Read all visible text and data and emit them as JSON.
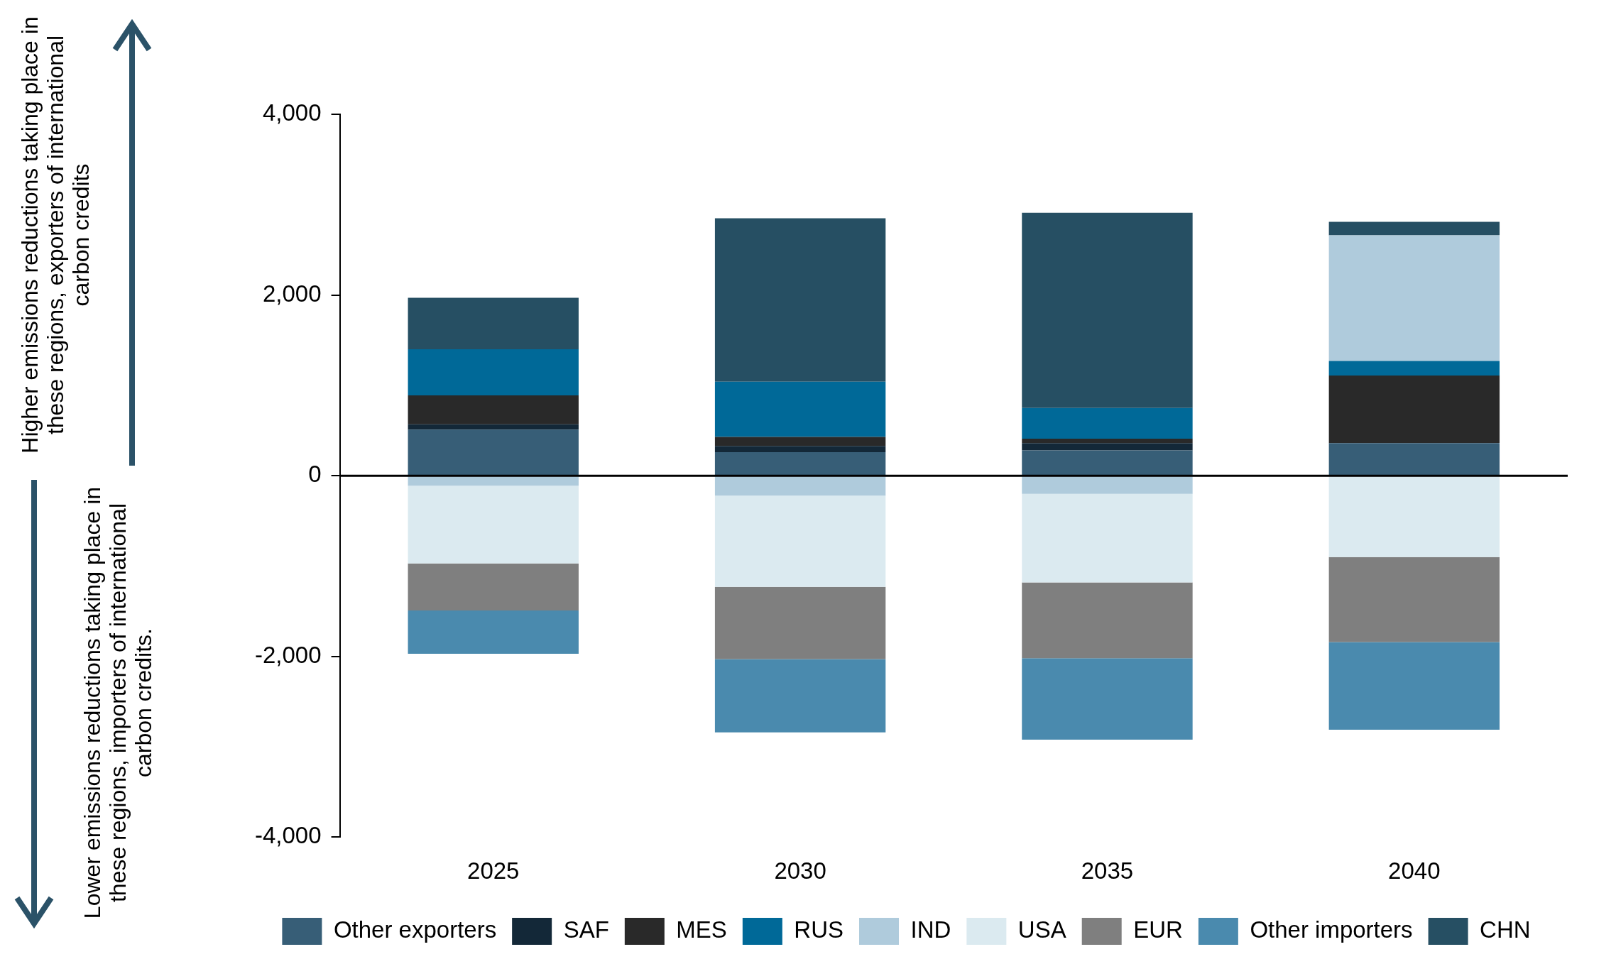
{
  "chart_data": {
    "type": "bar",
    "stacked": true,
    "categories": [
      "2025",
      "2030",
      "2035",
      "2040"
    ],
    "series": [
      {
        "name": "Other exporters",
        "color": "#375e77",
        "values": [
          510,
          260,
          280,
          360
        ]
      },
      {
        "name": "SAF",
        "color": "#132838",
        "values": [
          60,
          70,
          80,
          null
        ]
      },
      {
        "name": "MES",
        "color": "#292929",
        "values": [
          320,
          100,
          50,
          750
        ]
      },
      {
        "name": "RUS",
        "color": "#006998",
        "values": [
          510,
          610,
          340,
          160
        ]
      },
      {
        "name": "IND",
        "color": "#afcbdc",
        "values": [
          -110,
          -220,
          -200,
          1390
        ]
      },
      {
        "name": "USA",
        "color": "#dbeaf0",
        "values": [
          -860,
          -1010,
          -980,
          -900
        ]
      },
      {
        "name": "EUR",
        "color": "#7f7f7f",
        "values": [
          -520,
          -800,
          -840,
          -940
        ]
      },
      {
        "name": "Other importers",
        "color": "#4a8aae",
        "values": [
          -480,
          -810,
          -900,
          -970
        ]
      },
      {
        "name": "CHN",
        "color": "#264f63",
        "values": [
          570,
          1810,
          2160,
          150
        ]
      }
    ],
    "ylim": [
      -4000,
      4000
    ],
    "yticks": [
      {
        "value": -4000,
        "label": "-4,000"
      },
      {
        "value": -2000,
        "label": "-2,000"
      },
      0,
      {
        "value": 2000,
        "label": "2,000"
      },
      {
        "value": 4000,
        "label": "4,000"
      }
    ],
    "ref_lines": [
      {
        "axis": "y",
        "value": 0,
        "color": "#000000"
      }
    ],
    "grid": false,
    "legend": "bottom",
    "annotations": [
      "Higher emissions reductions taking place in these regions, exporters of international carbon credits",
      "Lower emissions reductions taking place in these regions, importers of international carbon credits."
    ]
  }
}
